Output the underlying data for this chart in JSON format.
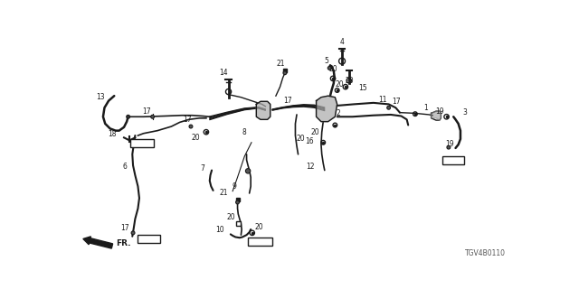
{
  "bg_color": "#ffffff",
  "diagram_code": "TGV4B0110",
  "line_color": "#1a1a1a",
  "label_color": "#1a1a1a"
}
